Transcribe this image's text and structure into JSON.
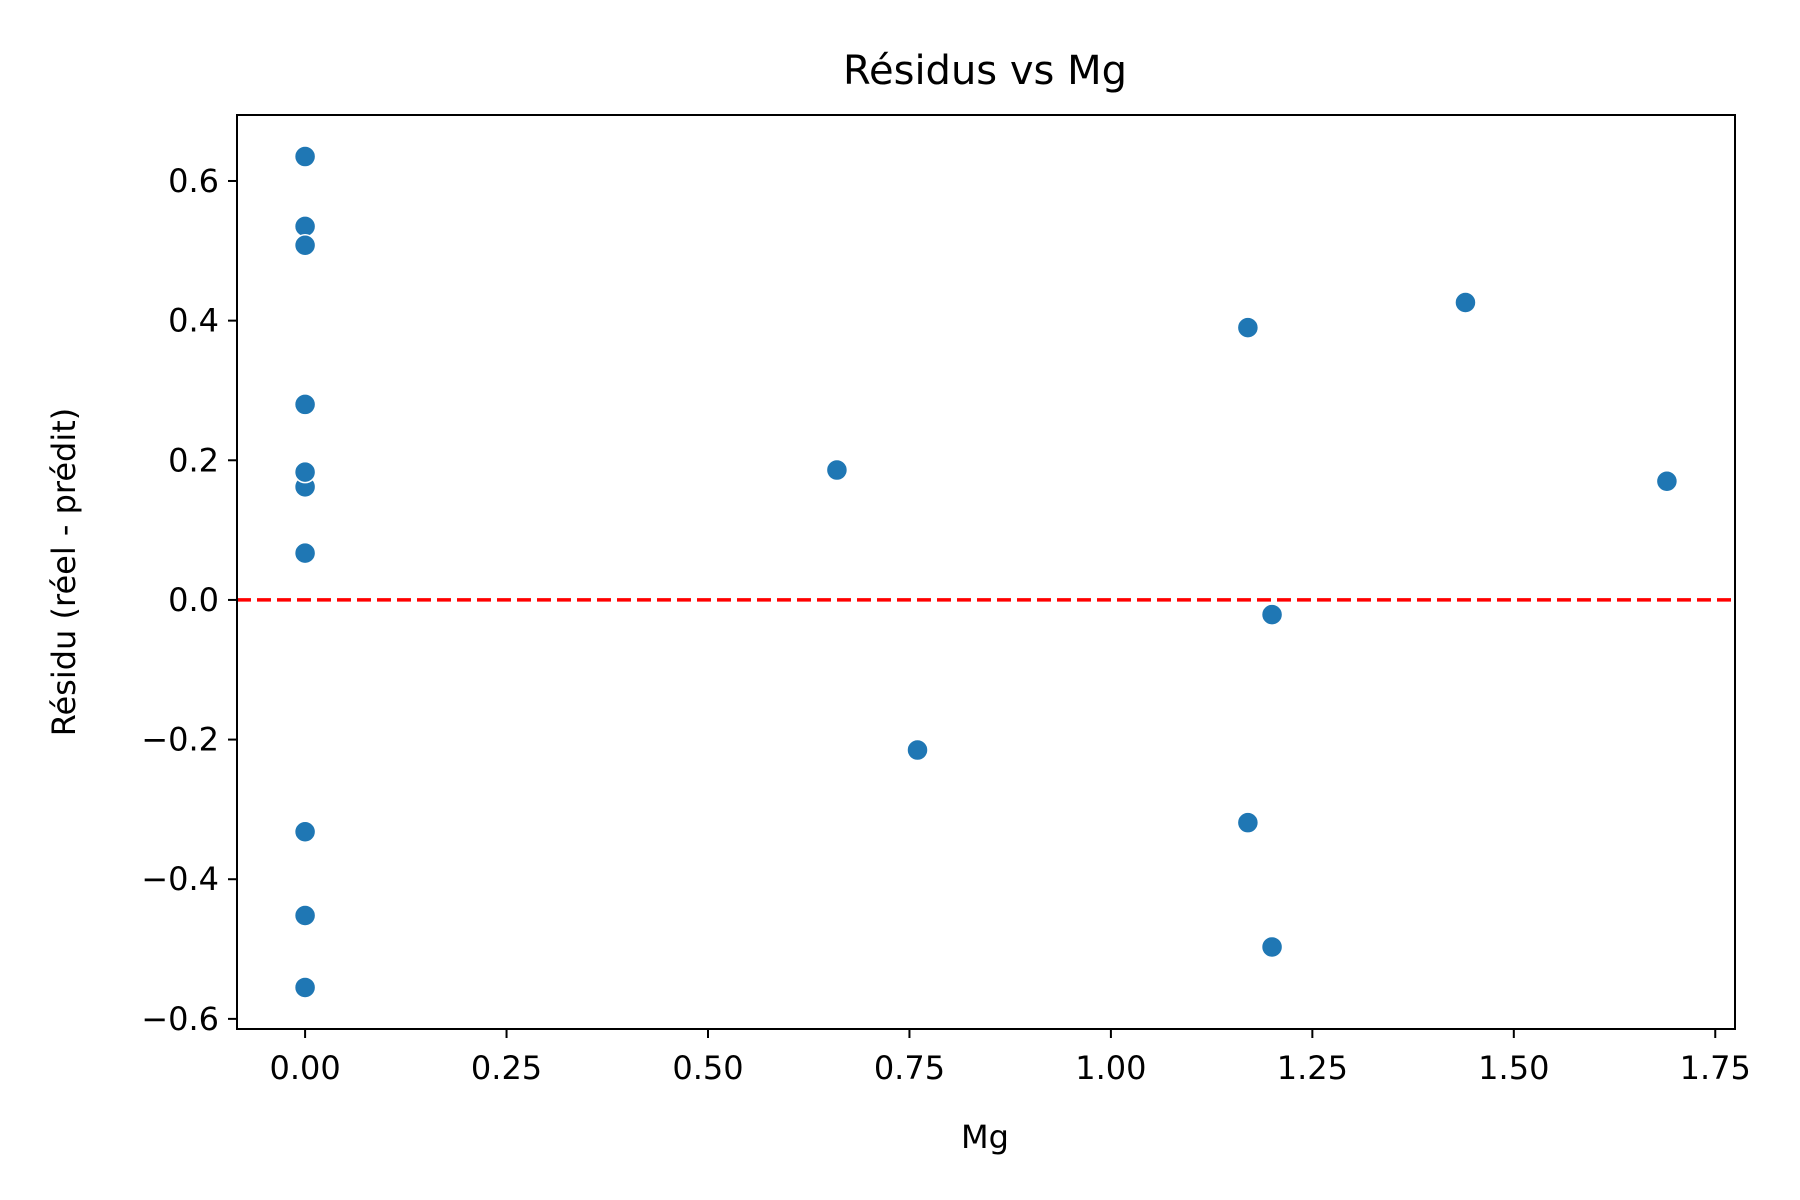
{
  "chart_data": {
    "type": "scatter",
    "title": "Résidus vs Mg",
    "xlabel": "Mg",
    "ylabel": "Résidu (réel - prédit)",
    "xlim": [
      -0.0845,
      1.7745
    ],
    "ylim": [
      -0.6145,
      0.6945
    ],
    "xticks": [
      0.0,
      0.25,
      0.5,
      0.75,
      1.0,
      1.25,
      1.5,
      1.75
    ],
    "xtick_labels": [
      "0.00",
      "0.25",
      "0.50",
      "0.75",
      "1.00",
      "1.25",
      "1.50",
      "1.75"
    ],
    "yticks": [
      -0.6,
      -0.4,
      -0.2,
      0.0,
      0.2,
      0.4,
      0.6
    ],
    "ytick_labels": [
      "−0.6",
      "−0.4",
      "−0.2",
      "0.0",
      "0.2",
      "0.4",
      "0.6"
    ],
    "grid": false,
    "marker_color": "#1f77b4",
    "reference_line": {
      "y": 0.0,
      "color": "#ff0000",
      "style": "dashed"
    },
    "series": [
      {
        "x": [
          0,
          0,
          0,
          0,
          0,
          0,
          0,
          0,
          0,
          0,
          0,
          0.66,
          0.76,
          1.17,
          1.17,
          1.2,
          1.2,
          1.44,
          1.69
        ],
        "y": [
          0.635,
          0.535,
          0.508,
          0.28,
          0.18,
          0.162,
          0.067,
          -0.332,
          -0.452,
          -0.555,
          0.183,
          0.186,
          -0.215,
          0.39,
          -0.319,
          -0.021,
          -0.497,
          0.426,
          0.17
        ]
      }
    ]
  }
}
